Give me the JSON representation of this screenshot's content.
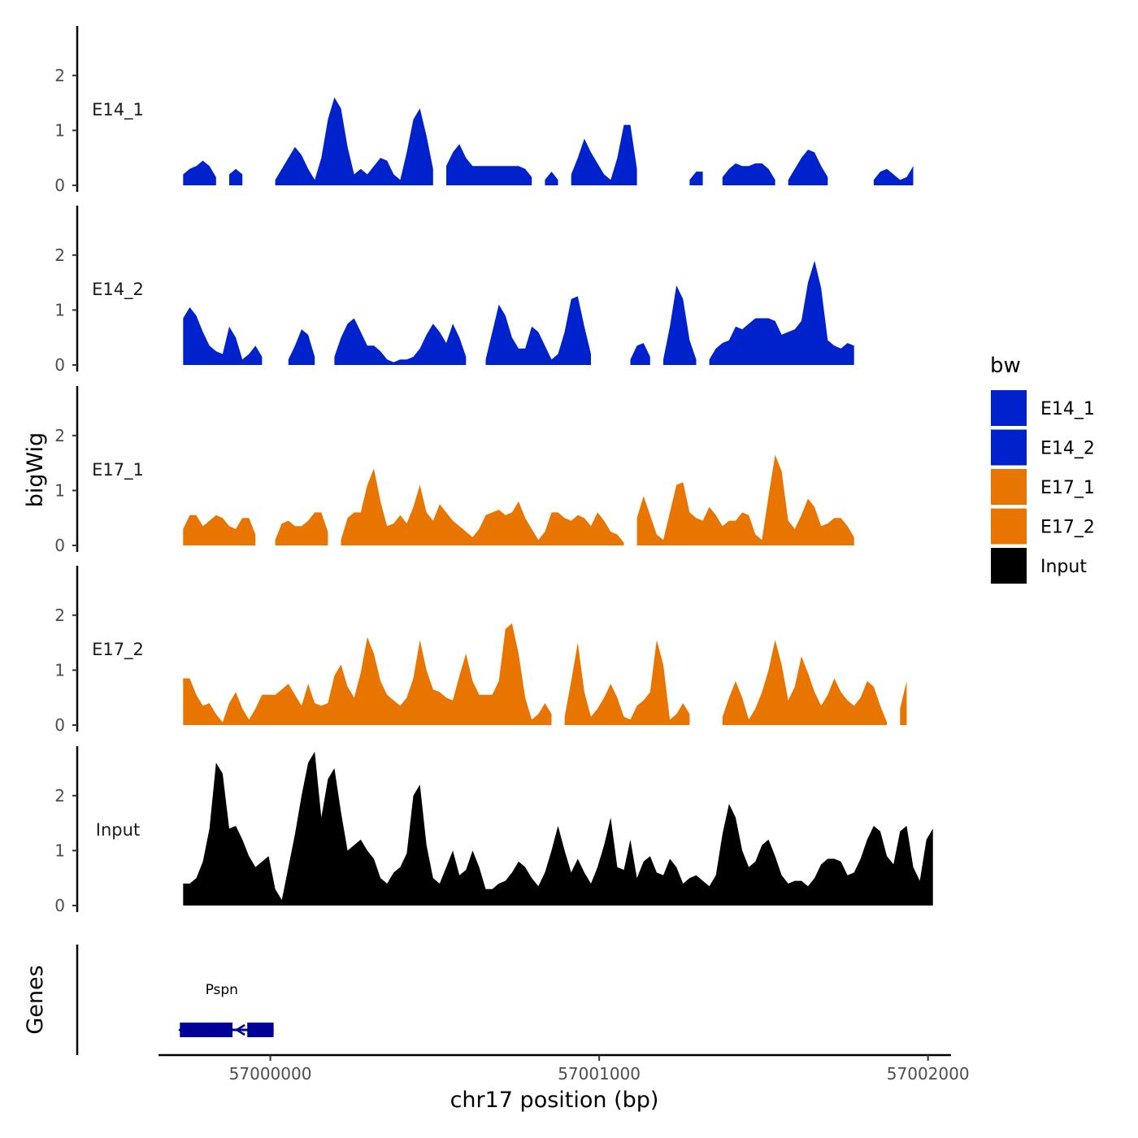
{
  "chart_data": {
    "type": "area",
    "chromosome": "chr17",
    "xlabel": "chr17 position (bp)",
    "ylabel": "bigWig",
    "genes_label": "Genes",
    "xlim": [
      56999660,
      57002070
    ],
    "x_ticks": [
      57000000,
      57001000,
      57002000
    ],
    "x_tick_labels": [
      "57000000",
      "57001000",
      "57002000"
    ],
    "ylim": [
      0,
      2.9
    ],
    "y_ticks": [
      0,
      1,
      2
    ],
    "y_tick_labels": [
      "0",
      "1",
      "2"
    ],
    "x_step": 20,
    "x_start": 56999735,
    "legend": {
      "title": "bw",
      "entries": [
        {
          "label": "E14_1",
          "color": "#0022cc"
        },
        {
          "label": "E14_2",
          "color": "#0022cc"
        },
        {
          "label": "E17_1",
          "color": "#e87500"
        },
        {
          "label": "E17_2",
          "color": "#e87500"
        },
        {
          "label": "Input",
          "color": "#000000"
        }
      ]
    },
    "series": [
      {
        "name": "E14_1",
        "color": "#0022cc",
        "values": [
          0.2,
          0.3,
          0.35,
          0.45,
          0.35,
          0.15,
          null,
          0.2,
          0.3,
          0.2,
          null,
          null,
          null,
          null,
          0.1,
          0.3,
          0.5,
          0.7,
          0.55,
          0.3,
          0.1,
          0.5,
          1.2,
          1.6,
          1.4,
          0.7,
          0.2,
          0.3,
          0.2,
          0.35,
          0.5,
          0.45,
          0.2,
          0.1,
          0.6,
          1.2,
          1.4,
          0.9,
          0.3,
          null,
          0.35,
          0.6,
          0.75,
          0.5,
          0.35,
          0.35,
          0.35,
          0.35,
          0.35,
          0.35,
          0.35,
          0.35,
          0.3,
          0.15,
          null,
          0.1,
          0.25,
          0.1,
          null,
          0.2,
          0.5,
          0.85,
          0.6,
          0.4,
          0.2,
          0.1,
          0.5,
          1.1,
          1.1,
          0.3,
          null,
          null,
          null,
          null,
          null,
          null,
          null,
          0.1,
          0.25,
          0.25,
          null,
          null,
          0.15,
          0.3,
          0.4,
          0.35,
          0.35,
          0.4,
          0.4,
          0.3,
          0.1,
          null,
          0.1,
          0.3,
          0.5,
          0.65,
          0.6,
          0.35,
          0.15,
          null,
          null,
          null,
          null,
          null,
          null,
          0.1,
          0.25,
          0.3,
          0.2,
          0.1,
          0.15,
          0.35
        ]
      },
      {
        "name": "E14_2",
        "color": "#0022cc",
        "values": [
          0.85,
          1.05,
          0.9,
          0.6,
          0.35,
          0.25,
          0.2,
          0.7,
          0.5,
          0.1,
          0.2,
          0.35,
          0.15,
          null,
          null,
          null,
          0.1,
          0.35,
          0.65,
          0.55,
          0.15,
          null,
          null,
          0.15,
          0.5,
          0.75,
          0.85,
          0.6,
          0.35,
          0.35,
          0.25,
          0.1,
          0.05,
          0.1,
          0.1,
          0.15,
          0.3,
          0.55,
          0.75,
          0.6,
          0.4,
          0.75,
          0.5,
          0.15,
          null,
          null,
          0.1,
          0.6,
          1.1,
          0.9,
          0.5,
          0.3,
          0.3,
          0.7,
          0.6,
          0.35,
          0.1,
          0.2,
          0.6,
          1.2,
          1.25,
          0.7,
          0.2,
          null,
          null,
          null,
          null,
          null,
          0.1,
          0.35,
          0.4,
          0.15,
          null,
          0.1,
          0.7,
          1.45,
          1.2,
          0.45,
          0.1,
          null,
          0.1,
          0.3,
          0.4,
          0.45,
          0.7,
          0.65,
          0.75,
          0.85,
          0.85,
          0.85,
          0.8,
          0.55,
          0.6,
          0.65,
          0.8,
          1.5,
          1.9,
          1.4,
          0.45,
          0.35,
          0.3,
          0.4,
          0.35
        ]
      },
      {
        "name": "E17_1",
        "color": "#e87500",
        "values": [
          0.3,
          0.55,
          0.55,
          0.35,
          0.45,
          0.55,
          0.5,
          0.35,
          0.3,
          0.5,
          0.5,
          0.2,
          null,
          null,
          0.1,
          0.4,
          0.45,
          0.35,
          0.35,
          0.45,
          0.6,
          0.6,
          0.25,
          null,
          0.1,
          0.5,
          0.6,
          0.6,
          1.1,
          1.4,
          0.8,
          0.35,
          0.4,
          0.55,
          0.4,
          0.7,
          1.1,
          0.6,
          0.45,
          0.75,
          0.6,
          0.45,
          0.35,
          0.25,
          0.15,
          0.3,
          0.55,
          0.6,
          0.65,
          0.55,
          0.6,
          0.8,
          0.5,
          0.3,
          0.1,
          0.25,
          0.6,
          0.6,
          0.5,
          0.45,
          0.55,
          0.5,
          0.35,
          0.6,
          0.45,
          0.25,
          0.2,
          0.05,
          null,
          0.5,
          0.9,
          0.55,
          0.2,
          0.1,
          0.6,
          1.1,
          1.15,
          0.6,
          0.5,
          0.45,
          0.7,
          0.55,
          0.35,
          0.45,
          0.45,
          0.6,
          0.55,
          0.2,
          0.1,
          0.9,
          1.65,
          1.35,
          0.45,
          0.3,
          0.55,
          0.85,
          0.7,
          0.35,
          0.4,
          0.5,
          0.5,
          0.35,
          0.15
        ]
      },
      {
        "name": "E17_2",
        "color": "#e87500",
        "values": [
          0.85,
          0.85,
          0.55,
          0.35,
          0.4,
          0.2,
          0.05,
          0.4,
          0.6,
          0.3,
          0.1,
          0.3,
          0.55,
          0.55,
          0.55,
          0.65,
          0.75,
          0.55,
          0.35,
          0.75,
          0.4,
          0.35,
          0.4,
          0.9,
          1.1,
          0.7,
          0.5,
          0.95,
          1.6,
          1.3,
          0.8,
          0.55,
          0.45,
          0.35,
          0.5,
          0.85,
          1.55,
          1.0,
          0.65,
          0.6,
          0.5,
          0.45,
          0.9,
          1.3,
          0.8,
          0.55,
          0.55,
          0.55,
          0.8,
          1.75,
          1.85,
          1.3,
          0.5,
          0.1,
          0.2,
          0.4,
          0.2,
          null,
          0.15,
          0.8,
          1.5,
          0.6,
          0.15,
          0.3,
          0.5,
          0.75,
          0.5,
          0.15,
          0.1,
          0.35,
          0.45,
          0.6,
          1.55,
          1.1,
          0.1,
          0.2,
          0.4,
          0.2,
          null,
          null,
          null,
          null,
          0.15,
          0.5,
          0.8,
          0.5,
          0.1,
          0.3,
          0.6,
          1.0,
          1.55,
          1.1,
          0.45,
          0.7,
          1.25,
          0.95,
          0.6,
          0.35,
          0.55,
          0.85,
          0.6,
          0.45,
          0.35,
          0.5,
          0.8,
          0.7,
          0.35,
          0.05,
          null,
          0.3,
          0.8
        ]
      },
      {
        "name": "Input",
        "color": "#000000",
        "values": [
          0.4,
          0.4,
          0.5,
          0.8,
          1.4,
          2.6,
          2.4,
          1.4,
          1.45,
          1.2,
          0.9,
          0.7,
          0.8,
          0.9,
          0.3,
          0.1,
          0.7,
          1.3,
          2.0,
          2.6,
          2.8,
          1.6,
          2.3,
          2.5,
          1.7,
          1.0,
          1.1,
          1.2,
          1.0,
          0.85,
          0.5,
          0.4,
          0.6,
          0.7,
          0.95,
          2.0,
          2.2,
          1.1,
          0.5,
          0.4,
          0.7,
          1.0,
          0.55,
          0.65,
          1.0,
          0.7,
          0.3,
          0.3,
          0.4,
          0.45,
          0.6,
          0.8,
          0.7,
          0.5,
          0.35,
          0.6,
          1.0,
          1.45,
          1.0,
          0.6,
          0.85,
          0.6,
          0.4,
          0.7,
          1.1,
          1.6,
          0.7,
          0.65,
          1.2,
          0.5,
          0.8,
          0.9,
          0.6,
          0.55,
          0.85,
          0.7,
          0.4,
          0.5,
          0.55,
          0.45,
          0.35,
          0.55,
          1.3,
          1.85,
          1.6,
          1.0,
          0.7,
          0.8,
          1.1,
          1.2,
          0.9,
          0.55,
          0.4,
          0.45,
          0.45,
          0.35,
          0.5,
          0.75,
          0.85,
          0.85,
          0.8,
          0.55,
          0.6,
          0.85,
          1.2,
          1.45,
          1.35,
          0.9,
          0.75,
          1.35,
          1.45,
          0.7,
          0.45,
          1.2,
          1.4
        ]
      }
    ],
    "gene": {
      "name": "Pspn",
      "strand": "-",
      "start": 56999725,
      "end": 57000010,
      "exons": [
        [
          56999725,
          56999885
        ],
        [
          56999930,
          57000010
        ]
      ],
      "color": "#000099"
    }
  }
}
